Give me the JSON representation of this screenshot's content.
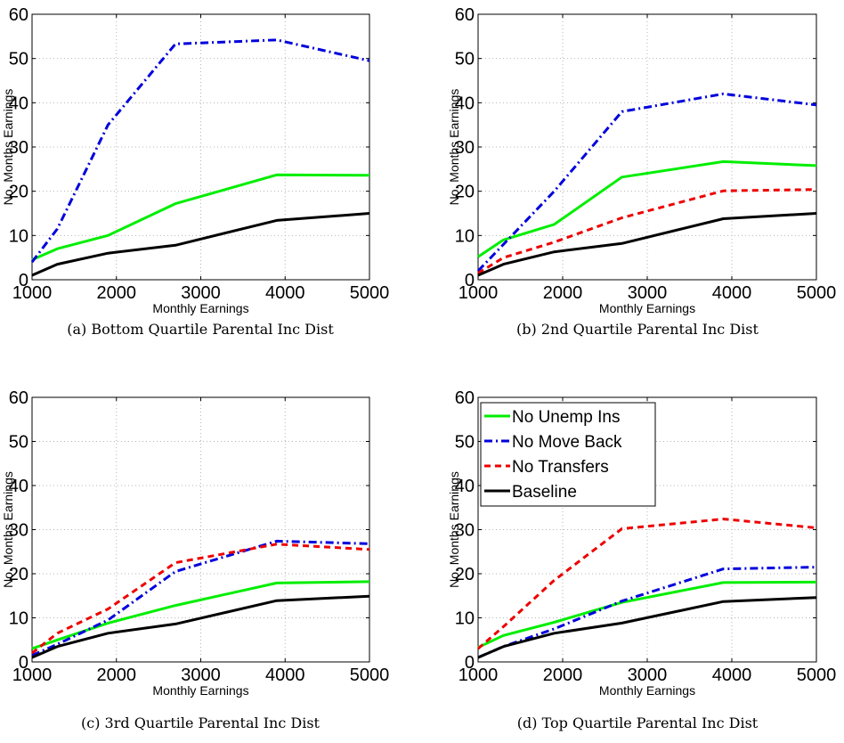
{
  "chart_data": [
    {
      "type": "line",
      "caption": "(a) Bottom Quartile Parental Inc Dist",
      "xlabel": "Monthly Earnings",
      "ylabel": "No. Months Earnings",
      "xlim": [
        1000,
        5000
      ],
      "ylim": [
        0,
        60
      ],
      "xticks": [
        "1000",
        "2000",
        "3000",
        "4000",
        "5000"
      ],
      "yticks": [
        "0",
        "10",
        "20",
        "30",
        "40",
        "50",
        "60"
      ],
      "grid": true,
      "series": [
        {
          "name": "No Unemp Ins",
          "x": [
            1000,
            1300,
            1900,
            2700,
            3900,
            5000
          ],
          "y": [
            4.5,
            7,
            10,
            17.2,
            23.7,
            23.6
          ]
        },
        {
          "name": "No Move Back",
          "x": [
            1000,
            1300,
            1900,
            2700,
            3900,
            5000
          ],
          "y": [
            4,
            11.5,
            35,
            53.3,
            54.2,
            49.5
          ]
        },
        {
          "name": "Baseline",
          "x": [
            1000,
            1300,
            1900,
            2700,
            3900,
            5000
          ],
          "y": [
            1,
            3.5,
            6,
            7.8,
            13.4,
            15
          ]
        }
      ]
    },
    {
      "type": "line",
      "caption": "(b) 2nd Quartile Parental Inc Dist",
      "xlabel": "Monthly Earnings",
      "ylabel": "No. Months Earnings",
      "xlim": [
        1000,
        5000
      ],
      "ylim": [
        0,
        60
      ],
      "xticks": [
        "1000",
        "2000",
        "3000",
        "4000",
        "5000"
      ],
      "yticks": [
        "0",
        "10",
        "20",
        "30",
        "40",
        "50",
        "60"
      ],
      "grid": true,
      "series": [
        {
          "name": "No Unemp Ins",
          "x": [
            1000,
            1300,
            1900,
            2700,
            3900,
            5000
          ],
          "y": [
            5.2,
            9,
            12.5,
            23.2,
            26.7,
            25.8
          ]
        },
        {
          "name": "No Move Back",
          "x": [
            1000,
            1300,
            1900,
            2700,
            3900,
            5000
          ],
          "y": [
            2,
            8,
            20,
            38,
            42,
            39.5
          ]
        },
        {
          "name": "No Transfers",
          "x": [
            1000,
            1300,
            1900,
            2700,
            3900,
            5000
          ],
          "y": [
            1.5,
            5,
            8.5,
            14,
            20.1,
            20.4
          ]
        },
        {
          "name": "Baseline",
          "x": [
            1000,
            1300,
            1900,
            2700,
            3900,
            5000
          ],
          "y": [
            1,
            3.5,
            6.3,
            8.2,
            13.8,
            15
          ]
        }
      ]
    },
    {
      "type": "line",
      "caption": "(c) 3rd Quartile Parental Inc Dist",
      "xlabel": "Monthly Earnings",
      "ylabel": "No. Months Earnings",
      "xlim": [
        1000,
        5000
      ],
      "ylim": [
        0,
        60
      ],
      "xticks": [
        "1000",
        "2000",
        "3000",
        "4000",
        "5000"
      ],
      "yticks": [
        "0",
        "10",
        "20",
        "30",
        "40",
        "50",
        "60"
      ],
      "grid": true,
      "series": [
        {
          "name": "No Unemp Ins",
          "x": [
            1000,
            1300,
            1900,
            2700,
            3900,
            5000
          ],
          "y": [
            3,
            5,
            8.8,
            12.8,
            17.9,
            18.2
          ]
        },
        {
          "name": "No Move Back",
          "x": [
            1000,
            1300,
            1900,
            2700,
            3900,
            5000
          ],
          "y": [
            1.5,
            4,
            9.5,
            20.5,
            27.4,
            26.8
          ]
        },
        {
          "name": "No Transfers",
          "x": [
            1000,
            1300,
            1900,
            2700,
            3900,
            5000
          ],
          "y": [
            2,
            6.5,
            12,
            22.5,
            26.7,
            25.5
          ]
        },
        {
          "name": "Baseline",
          "x": [
            1000,
            1300,
            1900,
            2700,
            3900,
            5000
          ],
          "y": [
            1,
            3.5,
            6.5,
            8.6,
            13.9,
            14.9
          ]
        }
      ]
    },
    {
      "type": "line",
      "caption": "(d) Top Quartile Parental Inc Dist",
      "xlabel": "Monthly Earnings",
      "ylabel": "No. Months Earnings",
      "xlim": [
        1000,
        5000
      ],
      "ylim": [
        0,
        60
      ],
      "xticks": [
        "1000",
        "2000",
        "3000",
        "4000",
        "5000"
      ],
      "yticks": [
        "0",
        "10",
        "20",
        "30",
        "40",
        "50",
        "60"
      ],
      "grid": true,
      "legend": "top-left",
      "series": [
        {
          "name": "No Unemp Ins",
          "x": [
            1000,
            1300,
            1900,
            2700,
            3900,
            5000
          ],
          "y": [
            3.3,
            6,
            9,
            13.5,
            18,
            18.1
          ]
        },
        {
          "name": "No Move Back",
          "x": [
            1000,
            1300,
            1900,
            2700,
            3900,
            5000
          ],
          "y": [
            1,
            3.5,
            7.5,
            13.8,
            21.1,
            21.5
          ]
        },
        {
          "name": "No Transfers",
          "x": [
            1000,
            1300,
            1900,
            2700,
            3900,
            5000
          ],
          "y": [
            3,
            8,
            18.5,
            30.2,
            32.4,
            30.4
          ]
        },
        {
          "name": "Baseline",
          "x": [
            1000,
            1300,
            1900,
            2700,
            3900,
            5000
          ],
          "y": [
            1,
            3.5,
            6.5,
            8.8,
            13.7,
            14.6
          ]
        }
      ]
    }
  ],
  "legend": {
    "entries": [
      "No Unemp Ins",
      "No Move Back",
      "No Transfers",
      "Baseline"
    ]
  },
  "colors": {
    "No Unemp Ins": "#00ee00",
    "No Move Back": "#0000dd",
    "No Transfers": "#ee0000",
    "Baseline": "#000000"
  }
}
